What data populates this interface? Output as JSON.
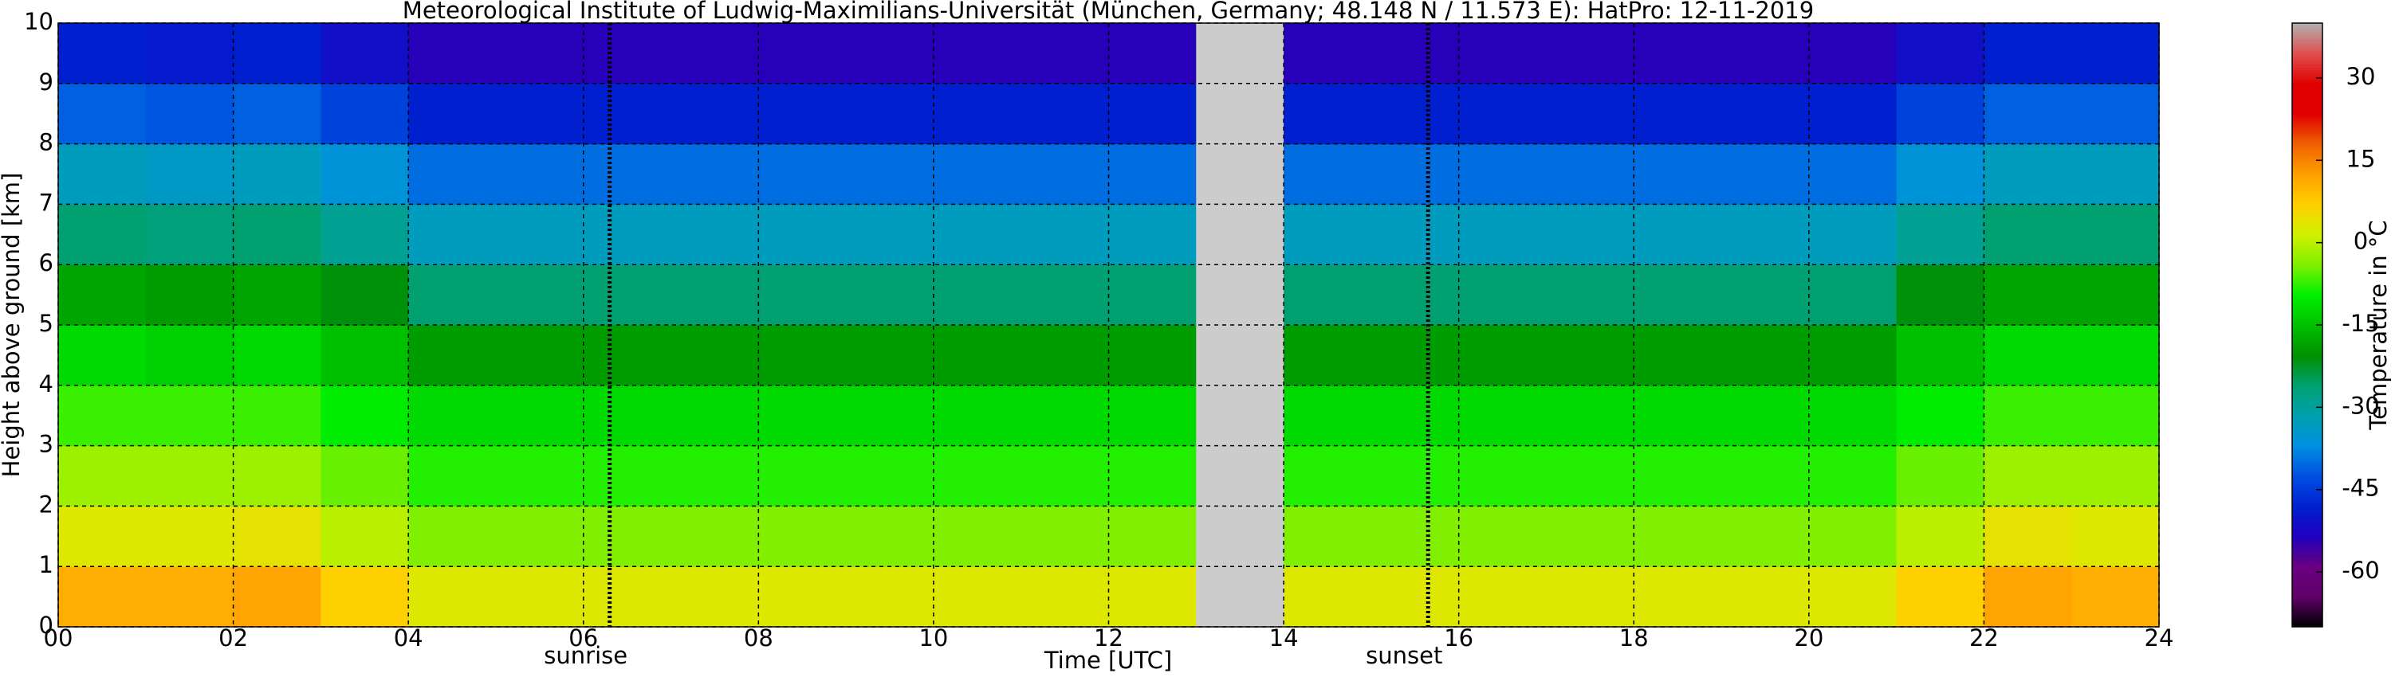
{
  "chart_data": {
    "type": "heatmap",
    "title": "Meteorological Institute of Ludwig-Maximilians-Universität (München, Germany; 48.148 N / 11.573 E):    HatPro: 12-11-2019",
    "x_label": "Time [UTC]",
    "y_label": "Height above ground [km]",
    "colorbar_label": "Temperature in °C",
    "x_edges": [
      0,
      1,
      2,
      3,
      4,
      5,
      6,
      7,
      8,
      9,
      10,
      11,
      12,
      13,
      14,
      15,
      16,
      17,
      18,
      19,
      20,
      21,
      22,
      23,
      24
    ],
    "y_edges": [
      0,
      1,
      2,
      3,
      4,
      5,
      6,
      7,
      8,
      9,
      10
    ],
    "z": [
      [
        11,
        11,
        12,
        7,
        3,
        3,
        3,
        3,
        3,
        3,
        3,
        3,
        3,
        null,
        3,
        3,
        3,
        3,
        3,
        3,
        3,
        7,
        12,
        11
      ],
      [
        3,
        3,
        4,
        0,
        -4,
        -4,
        -4,
        -4,
        -4,
        -4,
        -4,
        -4,
        -4,
        null,
        -4,
        -4,
        -4,
        -4,
        -4,
        -4,
        -4,
        0,
        4,
        3
      ],
      [
        -2,
        -2,
        -2,
        -5,
        -8,
        -8,
        -8,
        -8,
        -8,
        -8,
        -8,
        -8,
        -8,
        null,
        -8,
        -8,
        -8,
        -8,
        -8,
        -8,
        -8,
        -5,
        -2,
        -2
      ],
      [
        -7,
        -7,
        -7,
        -10,
        -12,
        -12,
        -12,
        -12,
        -12,
        -12,
        -12,
        -12,
        -12,
        null,
        -12,
        -12,
        -12,
        -12,
        -12,
        -12,
        -12,
        -10,
        -7,
        -7
      ],
      [
        -12,
        -13,
        -12,
        -15,
        -19,
        -19,
        -19,
        -19,
        -19,
        -19,
        -19,
        -19,
        -19,
        null,
        -19,
        -19,
        -19,
        -19,
        -19,
        -19,
        -19,
        -15,
        -12,
        -12
      ],
      [
        -18,
        -19,
        -18,
        -21,
        -26,
        -26,
        -26,
        -26,
        -26,
        -26,
        -26,
        -26,
        -26,
        null,
        -26,
        -26,
        -26,
        -26,
        -26,
        -26,
        -26,
        -21,
        -18,
        -18
      ],
      [
        -26,
        -27,
        -26,
        -29,
        -33,
        -33,
        -33,
        -33,
        -33,
        -33,
        -33,
        -33,
        -33,
        null,
        -33,
        -33,
        -33,
        -33,
        -33,
        -33,
        -33,
        -29,
        -26,
        -26
      ],
      [
        -33,
        -34,
        -33,
        -36,
        -40,
        -40,
        -40,
        -40,
        -40,
        -40,
        -40,
        -40,
        -40,
        null,
        -40,
        -40,
        -40,
        -40,
        -40,
        -40,
        -40,
        -36,
        -33,
        -33
      ],
      [
        -41,
        -42,
        -41,
        -44,
        -48,
        -48,
        -48,
        -48,
        -48,
        -48,
        -48,
        -48,
        -48,
        null,
        -48,
        -48,
        -48,
        -48,
        -48,
        -48,
        -48,
        -44,
        -41,
        -41
      ],
      [
        -48,
        -49,
        -48,
        -51,
        -54,
        -54,
        -54,
        -54,
        -54,
        -54,
        -54,
        -54,
        -54,
        null,
        -54,
        -54,
        -54,
        -54,
        -54,
        -54,
        -54,
        -51,
        -48,
        -48
      ]
    ],
    "missing_color": "#cccccc",
    "xlim": [
      0,
      24
    ],
    "ylim": [
      0,
      10
    ],
    "xticks": [
      {
        "value": 0,
        "label": "00"
      },
      {
        "value": 2,
        "label": "02"
      },
      {
        "value": 4,
        "label": "04"
      },
      {
        "value": 6,
        "label": "06"
      },
      {
        "value": 8,
        "label": "08"
      },
      {
        "value": 10,
        "label": "10"
      },
      {
        "value": 12,
        "label": "12"
      },
      {
        "value": 14,
        "label": "14"
      },
      {
        "value": 16,
        "label": "16"
      },
      {
        "value": 18,
        "label": "18"
      },
      {
        "value": 20,
        "label": "20"
      },
      {
        "value": 22,
        "label": "22"
      },
      {
        "value": 24,
        "label": "24"
      }
    ],
    "yticks": [
      0,
      1,
      2,
      3,
      4,
      5,
      6,
      7,
      8,
      9,
      10
    ],
    "grid": true,
    "clim": [
      -70,
      40
    ],
    "cticks": [
      -60,
      -45,
      -30,
      -15,
      0,
      15,
      30
    ],
    "colormap": [
      "#000000",
      "#60006a",
      "#6a0080",
      "#2000c0",
      "#0020d0",
      "#0050e0",
      "#0090e0",
      "#00a0b0",
      "#00a070",
      "#009000",
      "#00c000",
      "#00f000",
      "#80f000",
      "#d0f000",
      "#ffd000",
      "#ffa000",
      "#f06000",
      "#e00000",
      "#e00000",
      "#e05050",
      "#b0b0b0"
    ],
    "annotations": [
      {
        "label": "sunrise",
        "x": 6.3
      },
      {
        "label": "sunset",
        "x": 15.65
      }
    ]
  }
}
